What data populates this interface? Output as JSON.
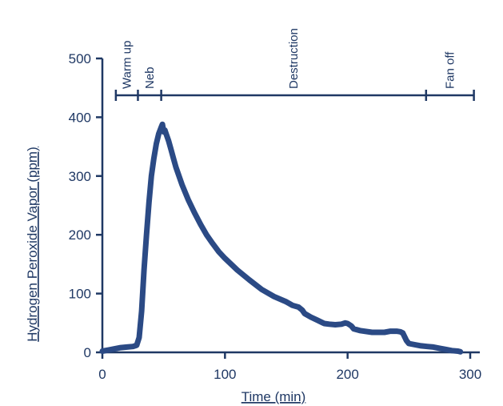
{
  "chart_data": {
    "type": "line",
    "title": "",
    "xlabel": "Time (min)",
    "ylabel": "Hydrogen Peroxide Vapor (ppm)",
    "xlim": [
      0,
      300
    ],
    "ylim": [
      0,
      500
    ],
    "xticks": [
      0,
      100,
      200,
      300
    ],
    "yticks": [
      0,
      100,
      200,
      300,
      400,
      500
    ],
    "grid": false,
    "colors": {
      "series": "#2b4a85",
      "axis": "#1f3864",
      "text": "#1f3864"
    },
    "phases": [
      {
        "label": "Warm up",
        "start": 11,
        "end": 29
      },
      {
        "label": "Neb",
        "start": 29,
        "end": 48
      },
      {
        "label": "Destruction",
        "start": 48,
        "end": 264
      },
      {
        "label": "Fan off",
        "start": 264,
        "end": 303
      }
    ],
    "series": [
      {
        "x": [
          0,
          5,
          10,
          15,
          20,
          25,
          28,
          30,
          32,
          34,
          36,
          38,
          40,
          42,
          44,
          46,
          48,
          49,
          50,
          51,
          52,
          54,
          56,
          58,
          60,
          65,
          70,
          75,
          80,
          85,
          90,
          95,
          100,
          110,
          120,
          130,
          140,
          150,
          155,
          160,
          163,
          165,
          170,
          175,
          180,
          181,
          185,
          190,
          195,
          198,
          200,
          203,
          205,
          210,
          220,
          230,
          235,
          240,
          243,
          245,
          248,
          250,
          255,
          260,
          265,
          270,
          275,
          280,
          285,
          290,
          292
        ],
        "y": [
          2,
          4,
          6,
          8,
          9,
          10,
          12,
          25,
          70,
          140,
          200,
          255,
          300,
          330,
          355,
          372,
          383,
          388,
          375,
          378,
          372,
          360,
          345,
          330,
          315,
          285,
          260,
          238,
          218,
          200,
          185,
          171,
          160,
          140,
          123,
          107,
          95,
          86,
          80,
          77,
          72,
          66,
          60,
          55,
          50,
          49,
          48,
          47,
          48,
          50,
          49,
          45,
          40,
          37,
          34,
          34,
          36,
          36,
          35,
          33,
          20,
          15,
          13,
          11,
          10,
          9,
          7,
          5,
          3,
          2,
          1
        ]
      }
    ]
  }
}
